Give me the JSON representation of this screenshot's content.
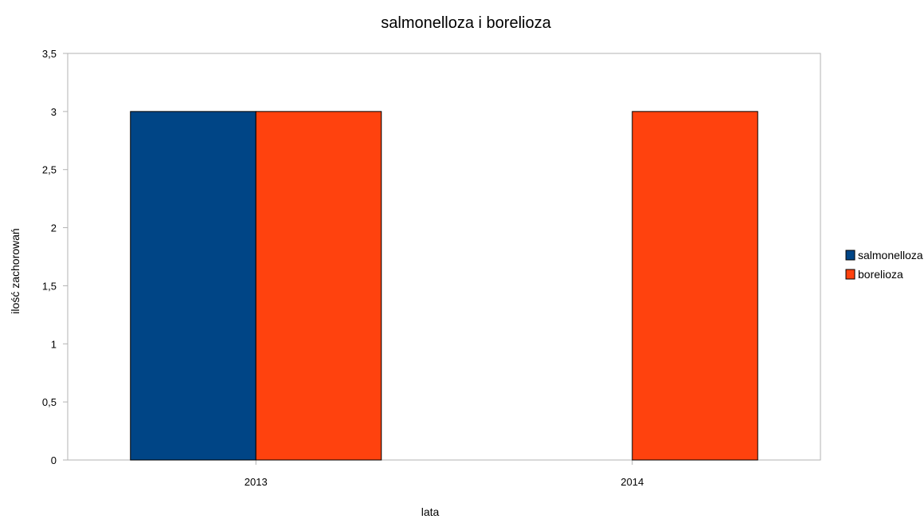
{
  "chart_data": {
    "type": "bar",
    "title": "salmonelloza i borelioza",
    "xlabel": "lata",
    "ylabel": "ilość zachorowań",
    "categories": [
      "2013",
      "2014"
    ],
    "series": [
      {
        "name": "salmonelloza",
        "values": [
          3,
          null
        ],
        "color": "#004586"
      },
      {
        "name": "borelioza",
        "values": [
          3,
          3
        ],
        "color": "#ff420e"
      }
    ],
    "ylim": [
      0,
      3.5
    ],
    "yticks": [
      "0",
      "0,5",
      "1",
      "1,5",
      "2",
      "2,5",
      "3",
      "3,5"
    ],
    "ytick_values": [
      0,
      0.5,
      1,
      1.5,
      2,
      2.5,
      3,
      3.5
    ],
    "grid": false,
    "legend": "right"
  }
}
